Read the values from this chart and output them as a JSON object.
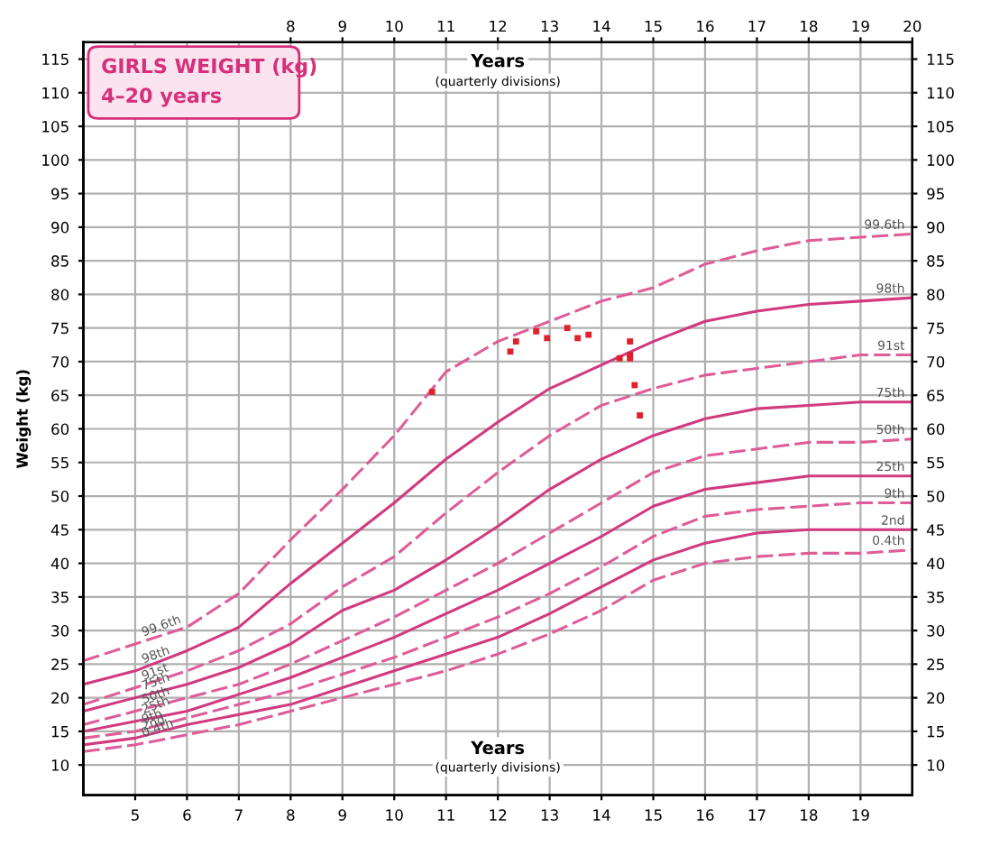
{
  "chart_data": {
    "type": "line",
    "title": "GIRLS WEIGHT (kg)",
    "subtitle": "4–20 years",
    "xlabel": "Years",
    "x2label": "Years",
    "ylabel": "Weight (kg)",
    "annotations": [
      "(quarterly divisions)",
      "(quarterly divisions)"
    ],
    "x": [
      4,
      5,
      6,
      7,
      8,
      9,
      10,
      11,
      12,
      13,
      14,
      15,
      16,
      17,
      18,
      19,
      20
    ],
    "series": [
      {
        "name": "99.6th",
        "color": "#de5c97",
        "line_style": "dashed",
        "values": [
          25.5,
          28,
          30.5,
          35.5,
          43.5,
          51,
          59,
          68.5,
          73,
          76,
          79,
          81,
          84.5,
          86.5,
          88,
          88.5,
          89
        ]
      },
      {
        "name": "98th",
        "color": "#d13a7f",
        "line_style": "solid",
        "values": [
          22,
          24,
          27,
          30.5,
          37,
          43,
          49,
          55.5,
          61,
          66,
          69.5,
          73,
          76,
          77.5,
          78.5,
          79,
          79.5
        ]
      },
      {
        "name": "91st",
        "color": "#de5c97",
        "line_style": "dashed",
        "values": [
          19,
          21.5,
          24,
          27,
          31,
          36.5,
          41,
          47.5,
          53.5,
          59,
          63.5,
          66,
          68,
          69,
          70,
          71,
          71
        ]
      },
      {
        "name": "75th",
        "color": "#d13a7f",
        "line_style": "solid",
        "values": [
          18,
          20,
          22,
          24.5,
          28,
          33,
          36,
          40.5,
          45.5,
          51,
          55.5,
          59,
          61.5,
          63,
          63.5,
          64,
          64
        ]
      },
      {
        "name": "50th",
        "color": "#de5c97",
        "line_style": "dashed",
        "values": [
          16,
          18,
          20,
          22,
          25,
          28.5,
          32,
          36,
          40,
          44.5,
          49,
          53.5,
          56,
          57,
          58,
          58,
          58.5
        ]
      },
      {
        "name": "25th",
        "color": "#d13a7f",
        "line_style": "solid",
        "values": [
          15,
          16.5,
          18,
          20.5,
          23,
          26,
          29,
          32.5,
          36,
          40,
          44,
          48.5,
          51,
          52,
          53,
          53,
          53
        ]
      },
      {
        "name": "9th",
        "color": "#de5c97",
        "line_style": "dashed",
        "values": [
          14,
          15,
          17,
          19,
          21,
          23.5,
          26,
          29,
          32,
          35.5,
          39.5,
          44,
          47,
          48,
          48.5,
          49,
          49
        ]
      },
      {
        "name": "2nd",
        "color": "#d13a7f",
        "line_style": "solid",
        "values": [
          13,
          14,
          16,
          17.5,
          19,
          21.5,
          24,
          26.5,
          29,
          32.5,
          36.5,
          40.5,
          43,
          44.5,
          45,
          45,
          45
        ]
      },
      {
        "name": "0.4th",
        "color": "#de5c97",
        "line_style": "dashed",
        "values": [
          12,
          13,
          14.5,
          16,
          18,
          20,
          22,
          24,
          26.5,
          29.5,
          33,
          37.5,
          40,
          41,
          41.5,
          41.5,
          42
        ]
      },
      {
        "type": "scatter",
        "color": "#e0202a",
        "marker": "square",
        "x": [
          10.73,
          12.24,
          12.35,
          12.74,
          12.95,
          13.34,
          13.54,
          13.75,
          14.55,
          14.35,
          14.55,
          14.55,
          14.64,
          14.74
        ],
        "values": [
          65.5,
          71.5,
          73,
          74.5,
          73.5,
          75,
          73.5,
          74,
          73,
          70.5,
          71,
          70.5,
          66.5,
          62
        ]
      }
    ],
    "xlim": [
      4,
      20
    ],
    "xticks": [
      5,
      6,
      7,
      8,
      9,
      10,
      11,
      12,
      13,
      14,
      15,
      16,
      17,
      18,
      19
    ],
    "x2lim": [
      4,
      20
    ],
    "x2ticks": [
      8,
      9,
      10,
      11,
      12,
      13,
      14,
      15,
      16,
      17,
      18,
      19,
      20
    ],
    "ylim": [
      5.5,
      117.5
    ],
    "yticks": [
      10,
      15,
      20,
      25,
      30,
      35,
      40,
      45,
      50,
      55,
      60,
      65,
      70,
      75,
      80,
      85,
      90,
      95,
      100,
      105,
      110,
      115
    ],
    "y2lim": [
      5.5,
      117.5
    ],
    "y2ticks": [
      10,
      15,
      20,
      25,
      30,
      35,
      40,
      45,
      50,
      55,
      60,
      65,
      70,
      75,
      80,
      85,
      90,
      95,
      100,
      105,
      110,
      115
    ],
    "grid": true,
    "legend": false
  }
}
